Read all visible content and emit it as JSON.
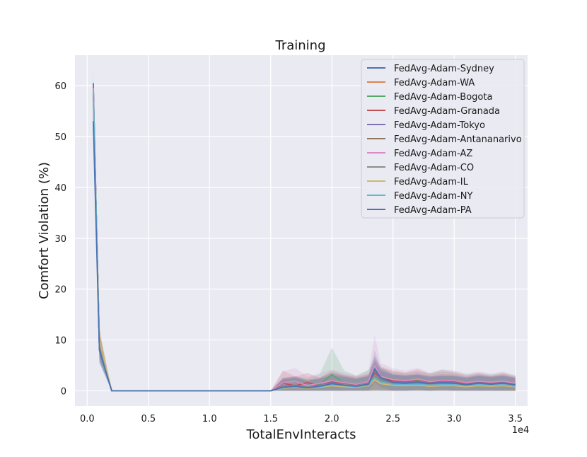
{
  "chart_data": {
    "type": "line",
    "title": "Training",
    "xlabel": "TotalEnvInteracts",
    "ylabel": "Comfort Violation (%)",
    "x_offset_label": "1e4",
    "xlim": [
      -0.1,
      3.6
    ],
    "ylim": [
      -3,
      66
    ],
    "xticks": [
      0.0,
      0.5,
      1.0,
      1.5,
      2.0,
      2.5,
      3.0,
      3.5
    ],
    "xtick_labels": [
      "0.0",
      "0.5",
      "1.0",
      "1.5",
      "2.0",
      "2.5",
      "3.0",
      "3.5"
    ],
    "yticks": [
      0,
      10,
      20,
      30,
      40,
      50,
      60
    ],
    "ytick_labels": [
      "0",
      "10",
      "20",
      "30",
      "40",
      "50",
      "60"
    ],
    "grid": true,
    "legend_position": "top-right",
    "x": [
      0.05,
      0.1,
      0.2,
      0.3,
      0.4,
      0.5,
      0.6,
      0.7,
      0.8,
      0.9,
      1.0,
      1.1,
      1.2,
      1.3,
      1.4,
      1.5,
      1.6,
      1.7,
      1.8,
      1.9,
      2.0,
      2.1,
      2.2,
      2.3,
      2.35,
      2.4,
      2.5,
      2.6,
      2.7,
      2.8,
      2.9,
      3.0,
      3.1,
      3.2,
      3.3,
      3.4,
      3.5
    ],
    "series": [
      {
        "name": "FedAvg-Adam-Sydney",
        "color": "#4c72b0",
        "values": [
          60.5,
          8.0,
          0,
          0,
          0,
          0,
          0,
          0,
          0,
          0,
          0,
          0,
          0,
          0,
          0,
          0,
          0.8,
          1.0,
          0.6,
          1.0,
          1.5,
          1.2,
          1.0,
          1.4,
          2.8,
          2.0,
          1.6,
          1.5,
          1.6,
          1.3,
          1.5,
          1.4,
          1.2,
          1.5,
          1.3,
          1.5,
          1.2
        ],
        "band": [
          62.0,
          10.0,
          0,
          0,
          0,
          0,
          0,
          0,
          0,
          0,
          0,
          0,
          0,
          0,
          0,
          0,
          2.5,
          2.8,
          2.0,
          2.5,
          3.5,
          3.0,
          2.5,
          3.0,
          5.5,
          4.0,
          3.2,
          3.0,
          3.2,
          2.8,
          3.0,
          2.9,
          2.6,
          3.0,
          2.8,
          3.0,
          2.6
        ]
      },
      {
        "name": "FedAvg-Adam-WA",
        "color": "#dd8452",
        "values": [
          57.5,
          9.0,
          0,
          0,
          0,
          0,
          0,
          0,
          0,
          0,
          0,
          0,
          0,
          0,
          0,
          0,
          0.5,
          0.8,
          0.5,
          0.8,
          1.0,
          0.8,
          0.7,
          1.0,
          2.0,
          1.5,
          1.2,
          1.0,
          1.1,
          0.9,
          1.0,
          1.0,
          0.8,
          1.0,
          0.9,
          1.0,
          0.6
        ],
        "band": [
          59.5,
          11.5,
          0,
          0,
          0,
          0,
          0,
          0,
          0,
          0,
          0,
          0,
          0,
          0,
          0,
          0,
          2.0,
          2.3,
          1.8,
          2.0,
          2.6,
          2.2,
          2.0,
          2.5,
          4.5,
          3.2,
          2.8,
          2.4,
          2.6,
          2.2,
          2.4,
          2.4,
          2.0,
          2.4,
          2.2,
          2.4,
          1.8
        ]
      },
      {
        "name": "FedAvg-Adam-Bogota",
        "color": "#55a868",
        "values": [
          59.0,
          8.5,
          0,
          0,
          0,
          0,
          0,
          0,
          0,
          0,
          0,
          0,
          0,
          0,
          0,
          0,
          0.6,
          0.9,
          0.8,
          1.2,
          3.2,
          1.5,
          1.0,
          1.8,
          3.0,
          2.2,
          1.8,
          1.6,
          2.0,
          1.6,
          2.2,
          2.0,
          1.5,
          1.8,
          1.6,
          1.8,
          1.5
        ],
        "band": [
          61.0,
          11.0,
          0,
          0,
          0,
          0,
          0,
          0,
          0,
          0,
          0,
          0,
          0,
          0,
          0,
          0,
          2.5,
          2.8,
          2.5,
          3.2,
          8.5,
          4.0,
          3.0,
          4.2,
          6.0,
          4.5,
          3.8,
          3.5,
          3.8,
          3.4,
          4.2,
          3.8,
          3.2,
          3.6,
          3.2,
          3.6,
          3.0
        ]
      },
      {
        "name": "FedAvg-Adam-Granada",
        "color": "#c44e52",
        "values": [
          58.0,
          9.5,
          0,
          0,
          0,
          0,
          0,
          0,
          0,
          0,
          0,
          0,
          0,
          0,
          0,
          0,
          1.5,
          1.0,
          1.6,
          1.0,
          1.8,
          1.4,
          1.2,
          1.6,
          3.5,
          2.5,
          2.0,
          1.8,
          2.2,
          1.7,
          2.0,
          1.8,
          1.4,
          1.7,
          1.5,
          1.7,
          1.4
        ],
        "band": [
          60.0,
          12.0,
          0,
          0,
          0,
          0,
          0,
          0,
          0,
          0,
          0,
          0,
          0,
          0,
          0,
          0,
          4.0,
          2.8,
          3.5,
          2.6,
          4.0,
          3.2,
          2.8,
          3.4,
          6.5,
          4.8,
          4.0,
          3.6,
          4.2,
          3.4,
          3.8,
          3.6,
          3.0,
          3.4,
          3.0,
          3.4,
          2.8
        ]
      },
      {
        "name": "FedAvg-Adam-Tokyo",
        "color": "#8172b3",
        "values": [
          60.0,
          8.0,
          0,
          0,
          0,
          0,
          0,
          0,
          0,
          0,
          0,
          0,
          0,
          0,
          0,
          0,
          0.9,
          1.1,
          0.7,
          1.1,
          1.6,
          1.3,
          1.0,
          1.5,
          4.0,
          2.4,
          1.7,
          1.6,
          1.8,
          1.5,
          1.7,
          1.6,
          1.3,
          1.6,
          1.4,
          1.6,
          1.3
        ],
        "band": [
          63.0,
          10.5,
          0,
          0,
          0,
          0,
          0,
          0,
          0,
          0,
          0,
          0,
          0,
          0,
          0,
          0,
          2.6,
          2.9,
          2.2,
          2.6,
          3.6,
          3.0,
          2.6,
          3.2,
          8.0,
          4.6,
          3.4,
          3.2,
          3.4,
          3.0,
          3.3,
          3.2,
          2.8,
          3.2,
          2.9,
          3.2,
          2.7
        ]
      },
      {
        "name": "FedAvg-Adam-Antananarivo",
        "color": "#937860",
        "values": [
          58.5,
          9.0,
          0,
          0,
          0,
          0,
          0,
          0,
          0,
          0,
          0,
          0,
          0,
          0,
          0,
          0,
          0.7,
          0.9,
          0.6,
          0.9,
          1.3,
          1.1,
          0.9,
          1.2,
          2.5,
          1.8,
          1.4,
          1.3,
          1.4,
          1.2,
          1.3,
          1.3,
          1.1,
          1.3,
          1.2,
          1.3,
          1.0
        ],
        "band": [
          60.5,
          11.5,
          0,
          0,
          0,
          0,
          0,
          0,
          0,
          0,
          0,
          0,
          0,
          0,
          0,
          0,
          2.3,
          2.6,
          2.0,
          2.3,
          3.0,
          2.7,
          2.3,
          2.8,
          5.0,
          3.8,
          3.0,
          2.8,
          3.0,
          2.6,
          2.8,
          2.8,
          2.4,
          2.8,
          2.6,
          2.8,
          2.3
        ]
      },
      {
        "name": "FedAvg-Adam-AZ",
        "color": "#da8bc3",
        "values": [
          59.5,
          8.5,
          0,
          0,
          0,
          0,
          0,
          0,
          0,
          0,
          0,
          0,
          0,
          0,
          0,
          0,
          1.6,
          1.9,
          1.0,
          1.5,
          2.0,
          1.6,
          1.3,
          1.8,
          5.0,
          2.8,
          2.2,
          2.0,
          2.3,
          1.8,
          2.1,
          2.0,
          1.6,
          1.9,
          1.7,
          1.9,
          1.5
        ],
        "band": [
          61.5,
          11.0,
          0,
          0,
          0,
          0,
          0,
          0,
          0,
          0,
          0,
          0,
          0,
          0,
          0,
          0,
          3.8,
          4.5,
          2.8,
          3.5,
          4.2,
          3.6,
          3.0,
          4.0,
          11.0,
          5.5,
          4.4,
          4.0,
          4.5,
          3.6,
          4.2,
          4.0,
          3.4,
          3.8,
          3.4,
          3.8,
          3.1
        ]
      },
      {
        "name": "FedAvg-Adam-CO",
        "color": "#8c8c8c",
        "values": [
          58.0,
          9.0,
          0,
          0,
          0,
          0,
          0,
          0,
          0,
          0,
          0,
          0,
          0,
          0,
          0,
          0,
          0.8,
          1.0,
          0.7,
          1.0,
          1.4,
          1.2,
          1.0,
          1.4,
          3.0,
          2.0,
          1.5,
          1.4,
          1.6,
          1.3,
          1.5,
          1.4,
          1.2,
          1.4,
          1.3,
          1.4,
          1.1
        ],
        "band": [
          60.0,
          11.5,
          0,
          0,
          0,
          0,
          0,
          0,
          0,
          0,
          0,
          0,
          0,
          0,
          0,
          0,
          2.4,
          2.7,
          2.2,
          2.4,
          3.2,
          2.8,
          2.4,
          3.0,
          5.8,
          4.0,
          3.2,
          3.0,
          3.2,
          2.8,
          3.0,
          3.0,
          2.6,
          3.0,
          2.7,
          3.0,
          2.5
        ]
      },
      {
        "name": "FedAvg-Adam-IL",
        "color": "#ccb974",
        "values": [
          57.0,
          10.0,
          0,
          0,
          0,
          0,
          0,
          0,
          0,
          0,
          0,
          0,
          0,
          0,
          0,
          0,
          0.5,
          0.7,
          0.5,
          0.7,
          1.0,
          0.8,
          0.7,
          1.0,
          2.2,
          1.4,
          1.1,
          1.0,
          1.1,
          0.9,
          1.0,
          1.0,
          0.8,
          1.0,
          0.9,
          1.0,
          0.8
        ],
        "band": [
          59.0,
          12.5,
          0,
          0,
          0,
          0,
          0,
          0,
          0,
          0,
          0,
          0,
          0,
          0,
          0,
          0,
          1.8,
          2.1,
          1.8,
          2.0,
          2.6,
          2.2,
          2.0,
          2.5,
          4.4,
          3.0,
          2.6,
          2.4,
          2.6,
          2.2,
          2.4,
          2.4,
          2.0,
          2.4,
          2.2,
          2.4,
          2.0
        ]
      },
      {
        "name": "FedAvg-Adam-NY",
        "color": "#64b5cd",
        "values": [
          59.0,
          8.0,
          0,
          0,
          0,
          0,
          0,
          0,
          0,
          0,
          0,
          0,
          0,
          0,
          0,
          0,
          0.6,
          0.8,
          0.6,
          0.8,
          1.2,
          1.0,
          0.8,
          1.1,
          2.6,
          1.7,
          1.3,
          1.2,
          1.3,
          1.1,
          1.2,
          1.2,
          1.0,
          1.2,
          1.1,
          1.2,
          0.9
        ],
        "band": [
          61.0,
          10.5,
          0,
          0,
          0,
          0,
          0,
          0,
          0,
          0,
          0,
          0,
          0,
          0,
          0,
          0,
          2.0,
          2.3,
          1.9,
          2.1,
          2.8,
          2.4,
          2.1,
          2.6,
          5.0,
          3.4,
          2.8,
          2.6,
          2.8,
          2.4,
          2.6,
          2.6,
          2.2,
          2.6,
          2.4,
          2.6,
          2.1
        ]
      },
      {
        "name": "FedAvg-Adam-PA",
        "color": "#4c72b0",
        "values": [
          53.0,
          8.0,
          0,
          0,
          0,
          0,
          0,
          0,
          0,
          0,
          0,
          0,
          0,
          0,
          0,
          0,
          0.7,
          0.9,
          0.6,
          0.9,
          1.4,
          1.1,
          0.9,
          1.3,
          4.3,
          2.6,
          1.6,
          1.5,
          1.7,
          1.4,
          1.6,
          1.5,
          1.2,
          1.5,
          1.3,
          1.5,
          1.2
        ],
        "band": [
          55.0,
          10.5,
          0,
          0,
          0,
          0,
          0,
          0,
          0,
          0,
          0,
          0,
          0,
          0,
          0,
          0,
          2.2,
          2.5,
          2.0,
          2.3,
          3.0,
          2.7,
          2.3,
          2.8,
          7.0,
          4.5,
          3.2,
          3.0,
          3.2,
          2.8,
          3.0,
          3.0,
          2.6,
          3.0,
          2.7,
          3.0,
          2.5
        ]
      }
    ]
  }
}
